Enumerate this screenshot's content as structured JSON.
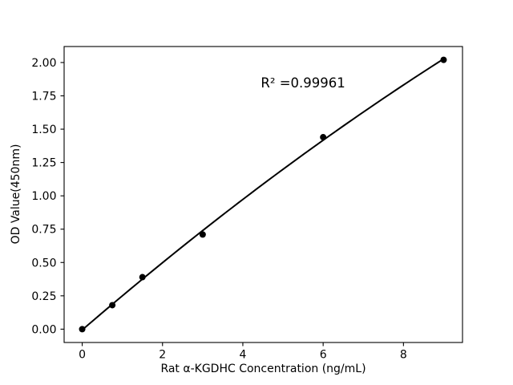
{
  "chart_data": {
    "type": "scatter",
    "title": "",
    "xlabel": "Rat α-KGDHC Concentration (ng/mL)",
    "ylabel": "OD Value(450nm)",
    "points": {
      "x": [
        0,
        0.75,
        1.5,
        3,
        6,
        9
      ],
      "y": [
        0.0,
        0.18,
        0.39,
        0.71,
        1.44,
        2.02
      ]
    },
    "fit": {
      "kind": "quadratic",
      "annotation": "R² =0.99961",
      "annotation_xy": [
        5.5,
        1.85
      ]
    },
    "xlim": [
      -0.45,
      9.47
    ],
    "ylim": [
      -0.1,
      2.12
    ],
    "xticks": {
      "values": [
        0,
        2,
        4,
        6,
        8
      ],
      "labels": [
        "0",
        "2",
        "4",
        "6",
        "8"
      ]
    },
    "yticks": {
      "values": [
        0,
        0.25,
        0.5,
        0.75,
        1.0,
        1.25,
        1.5,
        1.75,
        2.0
      ],
      "labels": [
        "0.00",
        "0.25",
        "0.50",
        "0.75",
        "1.00",
        "1.25",
        "1.50",
        "1.75",
        "2.00"
      ]
    },
    "grid": false,
    "legend": "none",
    "colors": {
      "curve": "#000000",
      "marker": "#000000",
      "text": "#000000",
      "background": "#ffffff",
      "spine": "#000000"
    }
  }
}
